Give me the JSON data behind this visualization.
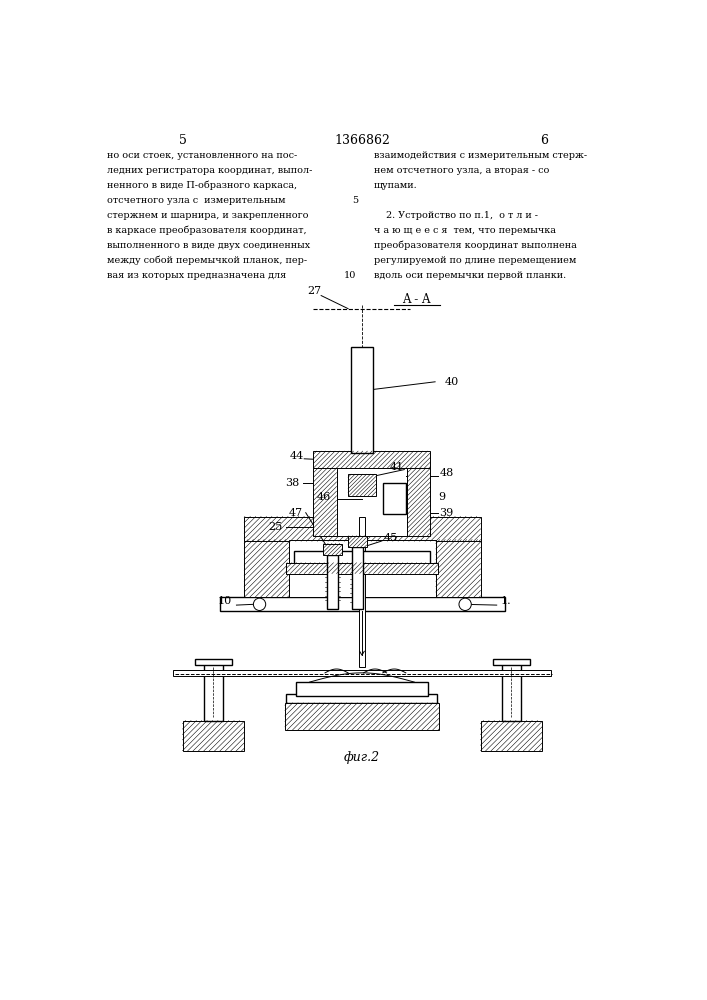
{
  "page_width": 7.07,
  "page_height": 10.0,
  "background_color": "#ffffff",
  "text_color": "#000000",
  "line_color": "#000000",
  "header": {
    "left_num": "5",
    "center_num": "1366862",
    "right_num": "6"
  },
  "left_text": [
    "но оси стоек, установленного на пос-",
    "ледних регистратора координат, выпол-",
    "ненного в виде П-образного каркаса,",
    "отсчетного узла с  измерительным",
    "стержнем и шарнира, и закрепленного",
    "в каркасе преобразователя координат,",
    "выполненного в виде двух соединенных",
    "между собой перемычкой планок, пер-",
    "вая из которых предназначена для"
  ],
  "right_text_col1": [
    "взаимодействия с измерительным стерж-",
    "нем отсчетного узла, а вторая - со",
    "щупами."
  ],
  "right_text_col2": [
    "    2. Устройство по п.1,  о т л и -",
    "ч а ю щ е е с я  тем, что перемычка",
    "преобразователя координат выполнена",
    "регулируемой по длине перемещением",
    "вдоль оси перемычки первой планки."
  ],
  "fig_label": "фиг.2"
}
